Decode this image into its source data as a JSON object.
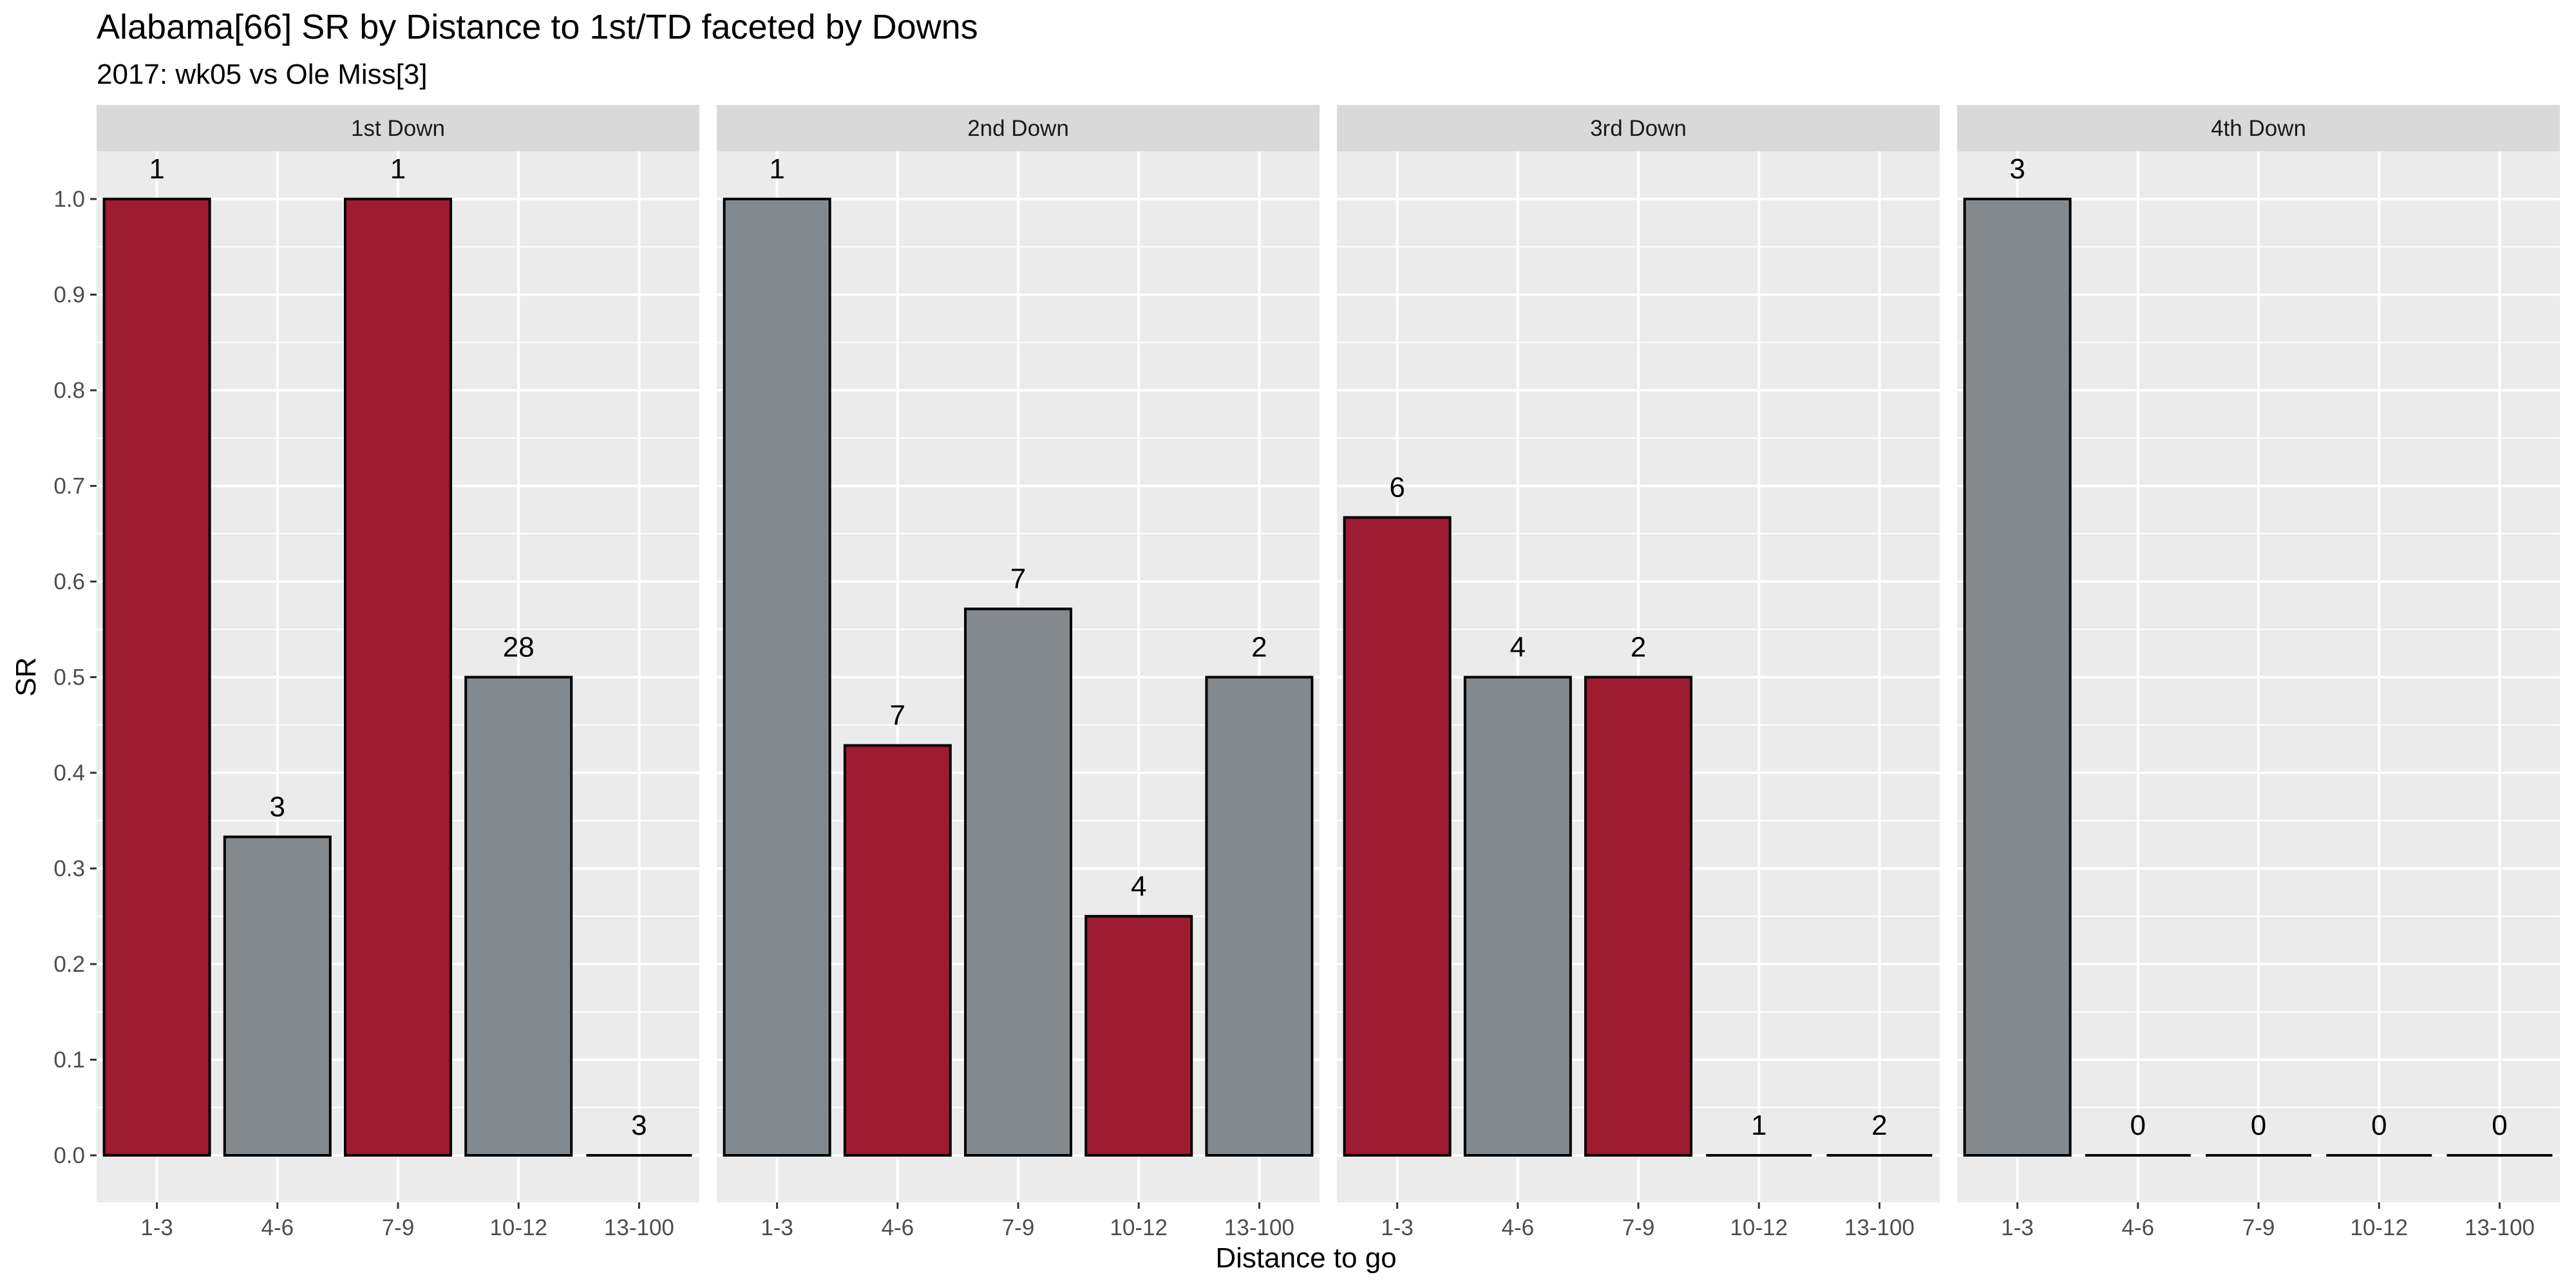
{
  "colors": {
    "alabama": "#9E1B32",
    "other": "#828A8F"
  },
  "chart_data": {
    "type": "bar",
    "title": "Alabama[66] SR by Distance to 1st/TD faceted by Downs",
    "subtitle": "2017: wk05 vs Ole Miss[3]",
    "xlabel": "Distance to go",
    "ylabel": "SR",
    "ylim": [
      0,
      1.0
    ],
    "yticks": [
      "0.0",
      "0.1",
      "0.2",
      "0.3",
      "0.4",
      "0.5",
      "0.6",
      "0.7",
      "0.8",
      "0.9",
      "1.0"
    ],
    "categories": [
      "1-3",
      "4-6",
      "7-9",
      "10-12",
      "13-100"
    ],
    "grid": true,
    "facets": [
      {
        "name": "1st Down",
        "values": [
          1.0,
          0.333,
          1.0,
          0.5,
          0.0
        ],
        "counts": [
          "1",
          "3",
          "1",
          "28",
          "3"
        ],
        "fill": [
          "alabama",
          "other",
          "alabama",
          "other",
          "alabama"
        ]
      },
      {
        "name": "2nd Down",
        "values": [
          1.0,
          0.4286,
          0.5714,
          0.25,
          0.5
        ],
        "counts": [
          "1",
          "7",
          "7",
          "4",
          "2"
        ],
        "fill": [
          "other",
          "alabama",
          "other",
          "alabama",
          "other"
        ]
      },
      {
        "name": "3rd Down",
        "values": [
          0.667,
          0.5,
          0.5,
          0.0,
          0.0
        ],
        "counts": [
          "6",
          "4",
          "2",
          "1",
          "2"
        ],
        "fill": [
          "alabama",
          "other",
          "alabama",
          "other",
          "other"
        ]
      },
      {
        "name": "4th Down",
        "values": [
          1.0,
          0.0,
          0.0,
          0.0,
          0.0
        ],
        "counts": [
          "3",
          "0",
          "0",
          "0",
          "0"
        ],
        "fill": [
          "other",
          "other",
          "other",
          "other",
          "other"
        ]
      }
    ]
  }
}
